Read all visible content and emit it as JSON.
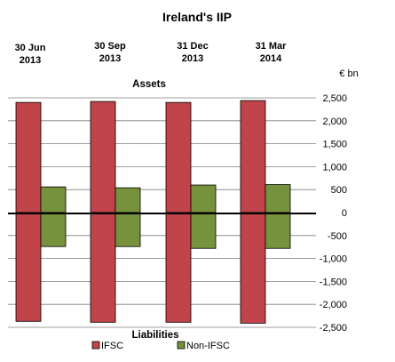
{
  "chart_data": {
    "type": "bar",
    "title": "Ireland's IIP",
    "unit_label": "€ bn",
    "top_section_label": "Assets",
    "bottom_section_label": "Liabilities",
    "categories": [
      "30 Jun 2013",
      "30 Sep 2013",
      "31 Dec 2013",
      "31 Mar 2014"
    ],
    "category_lines": [
      [
        "30 Jun",
        "2013"
      ],
      [
        "30 Sep",
        "2013"
      ],
      [
        "31 Dec",
        "2013"
      ],
      [
        "31 Mar",
        "2014"
      ]
    ],
    "series": [
      {
        "name": "IFSC",
        "color": "#c0444a",
        "assets": [
          2400,
          2420,
          2400,
          2440
        ],
        "liabilities": [
          -2370,
          -2390,
          -2390,
          -2410
        ]
      },
      {
        "name": "Non-IFSC",
        "color": "#76923c",
        "assets": [
          560,
          540,
          600,
          610
        ],
        "liabilities": [
          -740,
          -740,
          -780,
          -780
        ]
      }
    ],
    "ylim": [
      -2500,
      2500
    ],
    "yticks": [
      2500,
      2000,
      1500,
      1000,
      500,
      0,
      -500,
      -1000,
      -1500,
      -2000,
      -2500
    ],
    "ytick_labels": [
      "2,500",
      "2,000",
      "1,500",
      "1,000",
      "500",
      "0",
      "-500",
      "-1,000",
      "-1,500",
      "-2,000",
      "-2,500"
    ],
    "grid": true,
    "legend_position": "bottom"
  }
}
